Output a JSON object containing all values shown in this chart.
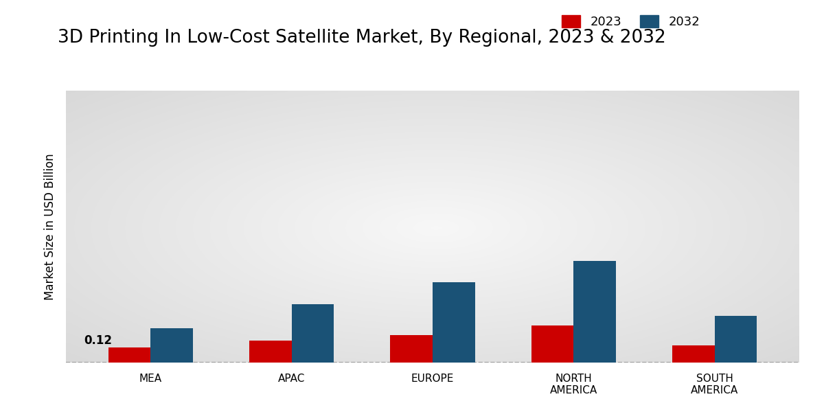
{
  "title": "3D Printing In Low-Cost Satellite Market, By Regional, 2023 & 2032",
  "ylabel": "Market Size in USD Billion",
  "categories": [
    "MEA",
    "APAC",
    "EUROPE",
    "NORTH\nAMERICA",
    "SOUTH\nAMERICA"
  ],
  "values_2023": [
    0.12,
    0.18,
    0.22,
    0.3,
    0.14
  ],
  "values_2032": [
    0.28,
    0.47,
    0.65,
    0.82,
    0.38
  ],
  "color_2023": "#cc0000",
  "color_2032": "#1a5276",
  "annotation_text": "0.12",
  "annotation_index": 0,
  "background_top": "#d0d0d0",
  "background_mid": "#f0f0f0",
  "background_bottom": "#d8d8d8",
  "bar_width": 0.3,
  "legend_labels": [
    "2023",
    "2032"
  ],
  "ylim": [
    0,
    2.2
  ],
  "title_fontsize": 19,
  "label_fontsize": 12,
  "tick_fontsize": 11,
  "legend_fontsize": 13
}
